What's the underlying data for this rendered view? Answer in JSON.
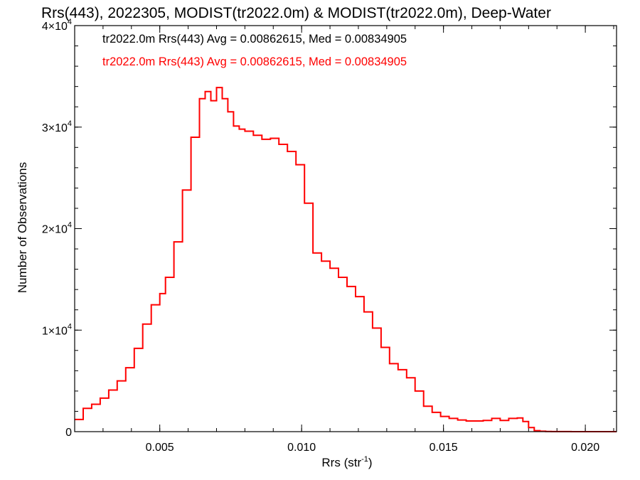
{
  "chart_data": {
    "type": "line",
    "title": "Rrs(443), 2022305, MODIST(tr2022.0m) & MODIST(tr2022.0m), Deep-Water",
    "xlabel": "Rrs (str",
    "xlabel_sup": "-1",
    "xlabel_end": ")",
    "ylabel": "Number of Observations",
    "xlim": [
      0.002,
      0.0211
    ],
    "ylim": [
      0,
      40000
    ],
    "x_ticks": [
      {
        "v": 0.005,
        "label": "0.005"
      },
      {
        "v": 0.01,
        "label": "0.010"
      },
      {
        "v": 0.015,
        "label": "0.015"
      },
      {
        "v": 0.02,
        "label": "0.020"
      }
    ],
    "y_ticks": [
      {
        "v": 0,
        "base": "0",
        "exp": ""
      },
      {
        "v": 10000,
        "base": "1×10",
        "exp": "4"
      },
      {
        "v": 20000,
        "base": "2×10",
        "exp": "4"
      },
      {
        "v": 30000,
        "base": "3×10",
        "exp": "4"
      },
      {
        "v": 40000,
        "base": "4×10",
        "exp": "4"
      }
    ],
    "x_minor_step": 0.001,
    "y_minor_step": 2000,
    "grid": false,
    "annotations": [
      {
        "text": "tr2022.0m Rrs(443) Avg = 0.00862615, Med = 0.00834905",
        "color": "#000000"
      },
      {
        "text": "tr2022.0m Rrs(443) Avg = 0.00862615, Med = 0.00834905",
        "color": "#ff0000"
      }
    ],
    "series": [
      {
        "color": "#ff0000",
        "step": true,
        "x": [
          0.002,
          0.0023,
          0.0026,
          0.0029,
          0.0032,
          0.0035,
          0.0038,
          0.0041,
          0.0044,
          0.0047,
          0.005,
          0.0052,
          0.0055,
          0.0058,
          0.0061,
          0.0064,
          0.0066,
          0.0068,
          0.007,
          0.0072,
          0.0074,
          0.0076,
          0.0078,
          0.008,
          0.0083,
          0.0086,
          0.0089,
          0.0092,
          0.0095,
          0.0098,
          0.0101,
          0.0104,
          0.0107,
          0.011,
          0.0113,
          0.0116,
          0.0119,
          0.0122,
          0.0125,
          0.0128,
          0.0131,
          0.0134,
          0.0137,
          0.014,
          0.0143,
          0.0146,
          0.0149,
          0.0152,
          0.0155,
          0.0158,
          0.0161,
          0.0164,
          0.0167,
          0.017,
          0.0173,
          0.0176,
          0.0178,
          0.018,
          0.0182,
          0.0184,
          0.0186,
          0.0188,
          0.019,
          0.0195,
          0.02,
          0.0205,
          0.0211
        ],
        "y": [
          1200,
          2300,
          2700,
          3300,
          4100,
          5000,
          6300,
          8200,
          10600,
          12500,
          13600,
          15200,
          18700,
          23800,
          29000,
          32800,
          33500,
          32600,
          33900,
          32800,
          31500,
          30100,
          29800,
          29600,
          29200,
          28800,
          28900,
          28300,
          27600,
          26300,
          22500,
          17600,
          16800,
          16100,
          15200,
          14300,
          13300,
          11800,
          10200,
          8300,
          6700,
          6100,
          5300,
          4000,
          2500,
          1900,
          1500,
          1300,
          1150,
          1050,
          1050,
          1100,
          1300,
          1100,
          1300,
          1350,
          1000,
          400,
          100,
          40,
          20,
          10,
          5,
          3,
          2,
          1,
          0
        ]
      }
    ]
  }
}
